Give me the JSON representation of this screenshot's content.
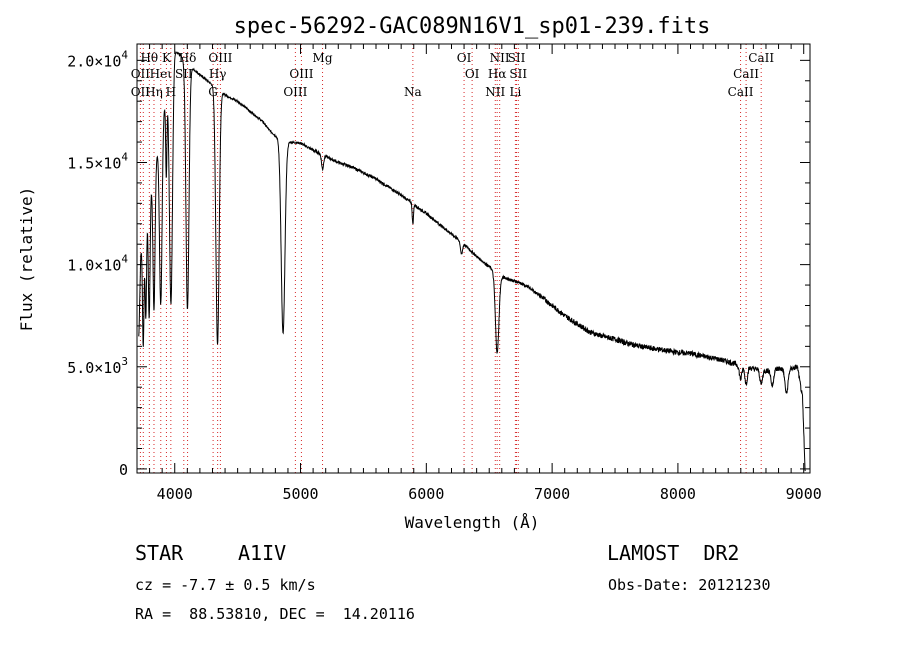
{
  "chart_data": {
    "type": "line",
    "title": "spec-56292-GAC089N16V1_sp01-239.fits",
    "xlabel": "Wavelength (Å)",
    "ylabel": "Flux (relative)",
    "xlim": [
      3700,
      9050
    ],
    "ylim": [
      -200,
      20800
    ],
    "x_ticks": [
      4000,
      5000,
      6000,
      7000,
      8000,
      9000
    ],
    "x_tick_labels": [
      "4000",
      "5000",
      "6000",
      "7000",
      "8000",
      "9000"
    ],
    "y_ticks": [
      0,
      5000,
      10000,
      15000,
      20000
    ],
    "y_tick_labels": [
      {
        "base": "0",
        "exp": ""
      },
      {
        "base": "5.0×10",
        "exp": "3"
      },
      {
        "base": "1.0×10",
        "exp": "4"
      },
      {
        "base": "1.5×10",
        "exp": "4"
      },
      {
        "base": "2.0×10",
        "exp": "4"
      }
    ],
    "grid": false,
    "continuum": [
      [
        3715,
        6500
      ],
      [
        3730,
        10500
      ],
      [
        3760,
        12000
      ],
      [
        3800,
        13500
      ],
      [
        3850,
        15000
      ],
      [
        3900,
        17000
      ],
      [
        3950,
        19000
      ],
      [
        4000,
        20500
      ],
      [
        4050,
        20200
      ],
      [
        4100,
        19800
      ],
      [
        4200,
        19300
      ],
      [
        4300,
        18800
      ],
      [
        4400,
        18300
      ],
      [
        4500,
        18000
      ],
      [
        4600,
        17500
      ],
      [
        4700,
        17000
      ],
      [
        4750,
        16600
      ],
      [
        4800,
        16300
      ],
      [
        4900,
        16000
      ],
      [
        5000,
        15950
      ],
      [
        5100,
        15600
      ],
      [
        5200,
        15300
      ],
      [
        5300,
        15000
      ],
      [
        5400,
        14800
      ],
      [
        5500,
        14500
      ],
      [
        5600,
        14200
      ],
      [
        5700,
        13800
      ],
      [
        5800,
        13400
      ],
      [
        5900,
        12950
      ],
      [
        6000,
        12500
      ],
      [
        6100,
        12000
      ],
      [
        6200,
        11500
      ],
      [
        6300,
        11000
      ],
      [
        6400,
        10400
      ],
      [
        6500,
        9900
      ],
      [
        6600,
        9400
      ],
      [
        6700,
        9200
      ],
      [
        6800,
        8950
      ],
      [
        6900,
        8500
      ],
      [
        7000,
        8000
      ],
      [
        7100,
        7500
      ],
      [
        7200,
        7100
      ],
      [
        7300,
        6700
      ],
      [
        7400,
        6500
      ],
      [
        7500,
        6350
      ],
      [
        7600,
        6150
      ],
      [
        7700,
        6000
      ],
      [
        7800,
        5900
      ],
      [
        7900,
        5800
      ],
      [
        8000,
        5700
      ],
      [
        8100,
        5650
      ],
      [
        8200,
        5520
      ],
      [
        8300,
        5400
      ],
      [
        8400,
        5250
      ],
      [
        8500,
        5050
      ],
      [
        8600,
        4900
      ],
      [
        8700,
        4800
      ],
      [
        8800,
        4900
      ],
      [
        8900,
        4900
      ],
      [
        8950,
        5000
      ],
      [
        8990,
        3500
      ],
      [
        9000,
        1800
      ],
      [
        9010,
        0
      ]
    ],
    "absorption_lines": [
      {
        "center": 3750,
        "depth": 5500,
        "width": 6
      },
      {
        "center": 3770,
        "depth": 5000,
        "width": 6
      },
      {
        "center": 3797,
        "depth": 6000,
        "width": 7
      },
      {
        "center": 3835,
        "depth": 6800,
        "width": 8
      },
      {
        "center": 3889,
        "depth": 8500,
        "width": 10
      },
      {
        "center": 3933,
        "depth": 4000,
        "width": 5
      },
      {
        "center": 3970,
        "depth": 11500,
        "width": 12
      },
      {
        "center": 4101,
        "depth": 12000,
        "width": 12
      },
      {
        "center": 4340,
        "depth": 12500,
        "width": 13
      },
      {
        "center": 4861,
        "depth": 9500,
        "width": 15
      },
      {
        "center": 5175,
        "depth": 700,
        "width": 8
      },
      {
        "center": 5893,
        "depth": 1000,
        "width": 5
      },
      {
        "center": 6280,
        "depth": 600,
        "width": 8
      },
      {
        "center": 6563,
        "depth": 3900,
        "width": 14
      },
      {
        "center": 8498,
        "depth": 650,
        "width": 10
      },
      {
        "center": 8542,
        "depth": 800,
        "width": 10
      },
      {
        "center": 8662,
        "depth": 700,
        "width": 10
      },
      {
        "center": 8750,
        "depth": 800,
        "width": 10
      },
      {
        "center": 8863,
        "depth": 1200,
        "width": 12
      }
    ],
    "line_markers": [
      {
        "name": "Hθ",
        "wl": 3798,
        "row": 1
      },
      {
        "name": "K",
        "wl": 3934,
        "row": 1
      },
      {
        "name": "Hδ",
        "wl": 4102,
        "row": 1
      },
      {
        "name": "OII",
        "wl": 3727,
        "row": 2
      },
      {
        "name": "Heι",
        "wl": 3889,
        "row": 2
      },
      {
        "name": "SII",
        "wl": 4072,
        "row": 2
      },
      {
        "name": "OII",
        "wl": 3727,
        "row": 3
      },
      {
        "name": "Hη",
        "wl": 3835,
        "row": 3
      },
      {
        "name": "H",
        "wl": 3969,
        "row": 3
      },
      {
        "name": "OIII",
        "wl": 4363,
        "row": 1
      },
      {
        "name": "Hγ",
        "wl": 4341,
        "row": 2
      },
      {
        "name": "G",
        "wl": 4305,
        "row": 3
      },
      {
        "name": "Mg",
        "wl": 5175,
        "row": 1
      },
      {
        "name": "OIII",
        "wl": 5007,
        "row": 2
      },
      {
        "name": "OIII",
        "wl": 4959,
        "row": 3
      },
      {
        "name": "Na",
        "wl": 5893,
        "row": 3
      },
      {
        "name": "OI",
        "wl": 6300,
        "row": 1
      },
      {
        "name": "OI",
        "wl": 6364,
        "row": 2
      },
      {
        "name": "NII",
        "wl": 6583,
        "row": 1
      },
      {
        "name": "SII",
        "wl": 6717,
        "row": 1
      },
      {
        "name": "Hα",
        "wl": 6563,
        "row": 2
      },
      {
        "name": "SII",
        "wl": 6731,
        "row": 2
      },
      {
        "name": "NII",
        "wl": 6548,
        "row": 3
      },
      {
        "name": "Li",
        "wl": 6708,
        "row": 3
      },
      {
        "name": "CaII",
        "wl": 8662,
        "row": 1
      },
      {
        "name": "CaII",
        "wl": 8542,
        "row": 2
      },
      {
        "name": "CaII",
        "wl": 8498,
        "row": 3
      }
    ],
    "marker_lines": [
      3727,
      3750,
      3798,
      3835,
      3889,
      3934,
      3969,
      4072,
      4102,
      4305,
      4341,
      4363,
      4959,
      5007,
      5175,
      5893,
      6300,
      6364,
      6548,
      6563,
      6583,
      6708,
      6717,
      6731,
      8498,
      8542,
      8662
    ]
  },
  "info": {
    "object_class": "STAR",
    "subclass": "A1IV",
    "survey": "LAMOST  DR2",
    "redshift": "cz = -7.7 ± 0.5 km/s",
    "obs_date": "Obs-Date: 20121230",
    "coords": "RA =  88.53810, DEC =  14.20116"
  },
  "colors": {
    "marker": "#d62728",
    "spectrum": "#000000"
  }
}
